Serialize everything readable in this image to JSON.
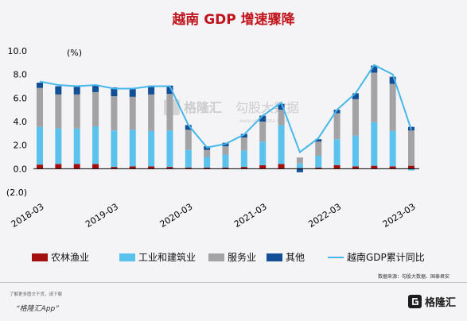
{
  "title": "越南 GDP 增速骤降",
  "unit": "(%)",
  "source_note": "数据来源：勾股大数据、国泰君安",
  "footer": {
    "note": "了解更多图文干货，请下载",
    "app": "“格隆汇App”",
    "brand": "格隆汇"
  },
  "watermark": {
    "brand": "格隆汇",
    "partner": "勾股大数据",
    "url": "www.gogudata.com"
  },
  "colors": {
    "agri": "#a50f0f",
    "industry": "#5bc2ee",
    "service": "#a3a3a6",
    "other": "#134f97",
    "line": "#45b7eb"
  },
  "chart_data": {
    "type": "bar",
    "stacked": true,
    "ylim": [
      -2.0,
      10.0
    ],
    "yticks": [
      "10.0",
      "8.0",
      "6.0",
      "4.0",
      "2.0",
      "0.0",
      "(2.0)"
    ],
    "ytick_values": [
      10,
      8,
      6,
      4,
      2,
      0,
      -2
    ],
    "xticks": [
      {
        "label": "2018-03",
        "index": 0
      },
      {
        "label": "2019-03",
        "index": 4
      },
      {
        "label": "2020-03",
        "index": 8
      },
      {
        "label": "2021-03",
        "index": 12
      },
      {
        "label": "2022-03",
        "index": 16
      },
      {
        "label": "2023-03",
        "index": 20
      }
    ],
    "categories": [
      "2018Q1",
      "2018Q2",
      "2018Q3",
      "2018Q4",
      "2019Q1",
      "2019Q2",
      "2019Q3",
      "2019Q4",
      "2020Q1",
      "2020Q2",
      "2020Q3",
      "2020Q4",
      "2021Q1",
      "2021Q2",
      "2021Q3",
      "2021Q4",
      "2022Q1",
      "2022Q2",
      "2022Q3",
      "2022Q4",
      "2023Q1"
    ],
    "series": [
      {
        "name": "农林渔业",
        "key": "agri",
        "values": [
          0.35,
          0.4,
          0.4,
          0.4,
          0.15,
          0.2,
          0.2,
          0.15,
          0.1,
          0.1,
          0.1,
          0.15,
          0.3,
          0.4,
          0.05,
          0.1,
          0.3,
          0.2,
          0.25,
          0.2,
          0.25
        ]
      },
      {
        "name": "工业和建筑业",
        "key": "industry",
        "values": [
          3.2,
          3.0,
          3.0,
          3.2,
          3.1,
          3.1,
          3.0,
          3.1,
          1.5,
          0.9,
          1.1,
          1.4,
          2.0,
          3.3,
          0.4,
          1.0,
          2.2,
          2.6,
          3.7,
          3.0,
          -0.15
        ]
      },
      {
        "name": "服务业",
        "key": "service",
        "values": [
          3.3,
          2.9,
          2.9,
          2.9,
          2.9,
          2.8,
          3.1,
          3.1,
          1.7,
          0.6,
          0.7,
          1.1,
          1.7,
          1.3,
          0.5,
          1.2,
          2.2,
          3.1,
          4.2,
          4.0,
          3.0
        ]
      },
      {
        "name": "其他",
        "key": "other",
        "values": [
          0.45,
          0.7,
          0.65,
          0.6,
          0.75,
          0.65,
          0.75,
          0.7,
          0.4,
          0.3,
          0.3,
          0.3,
          0.5,
          0.5,
          -0.3,
          0.2,
          0.3,
          0.5,
          0.6,
          0.6,
          0.3
        ]
      },
      {
        "name": "越南GDP累计同比",
        "key": "line",
        "type": "line",
        "values": [
          7.4,
          7.1,
          7.0,
          7.1,
          6.8,
          6.8,
          7.0,
          7.0,
          3.7,
          1.8,
          2.1,
          2.9,
          4.5,
          5.6,
          1.4,
          2.6,
          5.0,
          6.4,
          8.8,
          8.0,
          3.3
        ]
      }
    ]
  }
}
